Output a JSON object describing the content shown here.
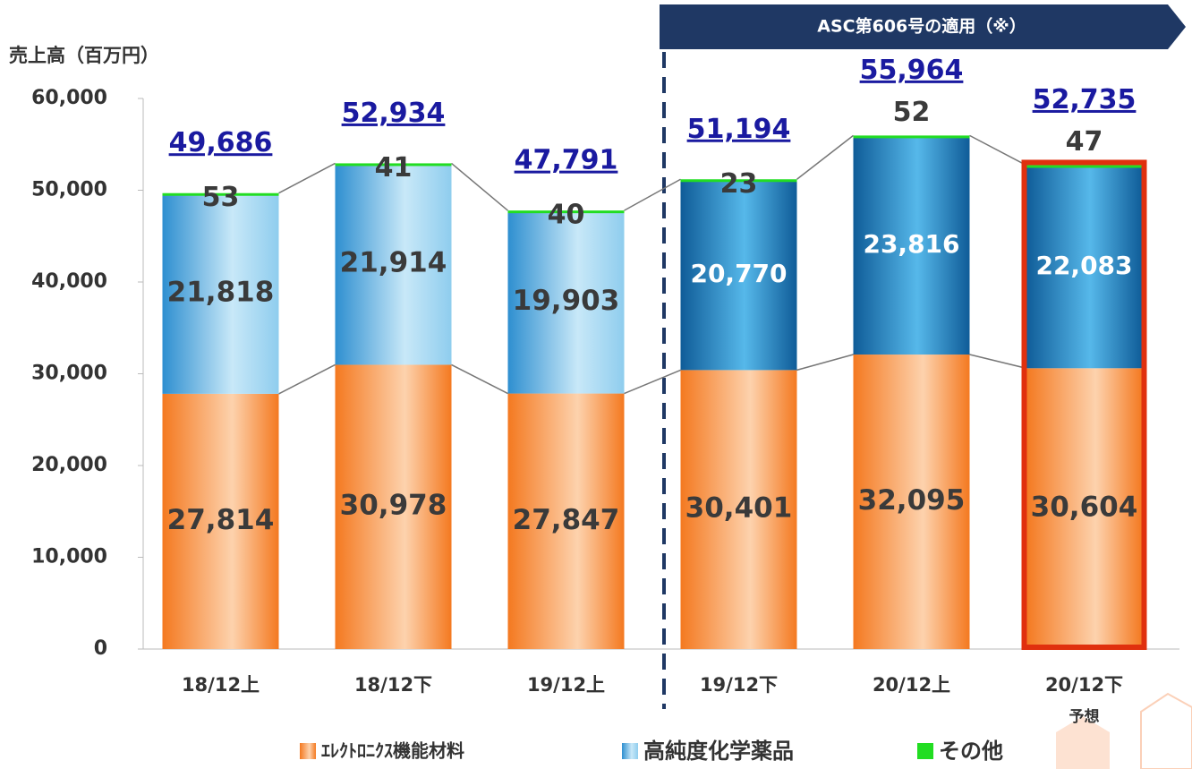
{
  "chart_data": {
    "type": "stacked_bar",
    "y_label": "売上高（百万円）",
    "banner": "ASC第606号の適用（※）",
    "categories": [
      "18/12上",
      "18/12下",
      "19/12上",
      "19/12下",
      "20/12上",
      "20/12下"
    ],
    "forecast_note": "予想",
    "forecast_index": 5,
    "asc_start_index": 3,
    "series": [
      {
        "name": "ｴﾚｸﾄﾛﾆｸｽ機能材料",
        "color": "#f47920",
        "values": [
          27814,
          30978,
          27847,
          30401,
          32095,
          30604
        ],
        "value_labels": [
          "27,814",
          "30,978",
          "27,847",
          "30,401",
          "32,095",
          "30,604"
        ]
      },
      {
        "name": "高純度化学薬品",
        "color": "#2e8fd0",
        "values": [
          21818,
          21914,
          19903,
          20770,
          23816,
          22083
        ],
        "value_labels": [
          "21,818",
          "21,914",
          "19,903",
          "20,770",
          "23,816",
          "22,083"
        ]
      },
      {
        "name": "その他",
        "color": "#22dd22",
        "values": [
          53,
          41,
          40,
          23,
          52,
          47
        ]
      }
    ],
    "totals": [
      49686,
      52934,
      47791,
      51194,
      55964,
      52735
    ],
    "total_labels": [
      "49,686",
      "52,934",
      "47,791",
      "51,194",
      "55,964",
      "52,735"
    ],
    "ylim": [
      0,
      60000
    ],
    "yticks": [
      0,
      {
        "value": 10000,
        "label": "10,000"
      },
      {
        "value": 20000,
        "label": "20,000"
      },
      {
        "value": 30000,
        "label": "30,000"
      },
      {
        "value": 40000,
        "label": "40,000"
      },
      {
        "value": 50000,
        "label": "50,000"
      },
      {
        "value": 60000,
        "label": "60,000"
      }
    ]
  }
}
